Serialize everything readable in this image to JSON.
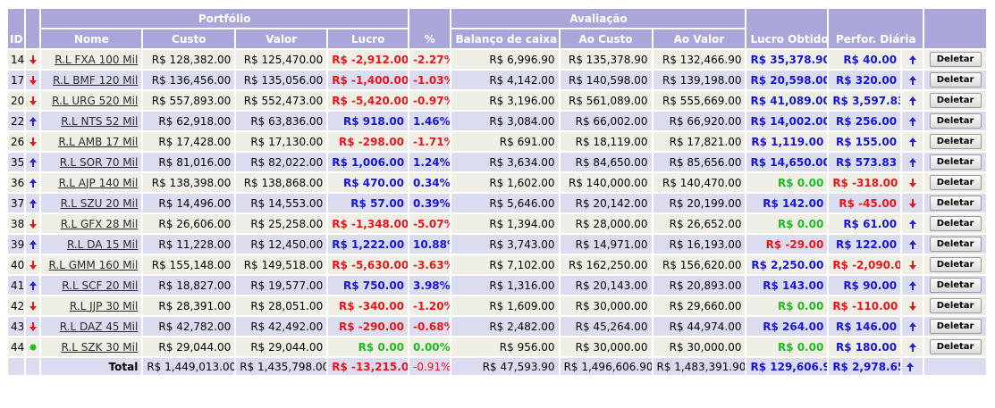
{
  "headers": {
    "id": "ID",
    "portfolio": "Portfólio",
    "nome": "Nome",
    "custo": "Custo",
    "valor": "Valor",
    "lucro": "Lucro",
    "pct": "%",
    "avaliacao": "Avaliação",
    "balanco": "Balanço de caixa",
    "ao_custo": "Ao Custo",
    "ao_valor": "Ao Valor",
    "lucro_obtido": "Lucro Obtido",
    "perfor_diaria": "Perfor. Diária"
  },
  "delete_label": "Deletar",
  "colors": {
    "positive": "#1515d8",
    "negative": "#e8161a",
    "zero": "#21bb21",
    "header": "#a9a7d9"
  },
  "rows": [
    {
      "id": "14",
      "trend": "down",
      "name": "R.L FXA 100 Mil",
      "custo": "R$ 128,382.00",
      "valor": "R$ 125,470.00",
      "lucro": "R$ -2,912.00",
      "lucro_s": "neg",
      "pct": "-2.27%",
      "pct_s": "neg",
      "balanco": "R$ 6,996.90",
      "ao_custo": "R$ 135,378.90",
      "ao_valor": "R$ 132,466.90",
      "lucro_obtido": "R$ 35,378.90",
      "lo_s": "pos",
      "perf": "R$ 40.00",
      "perf_s": "pos",
      "perf_trend": "up"
    },
    {
      "id": "17",
      "trend": "down",
      "name": "R.L BMF 120 Mil",
      "custo": "R$ 136,456.00",
      "valor": "R$ 135,056.00",
      "lucro": "R$ -1,400.00",
      "lucro_s": "neg",
      "pct": "-1.03%",
      "pct_s": "neg",
      "balanco": "R$ 4,142.00",
      "ao_custo": "R$ 140,598.00",
      "ao_valor": "R$ 139,198.00",
      "lucro_obtido": "R$ 20,598.00",
      "lo_s": "pos",
      "perf": "R$ 320.00",
      "perf_s": "pos",
      "perf_trend": "up"
    },
    {
      "id": "20",
      "trend": "down",
      "name": "R.L URG 520 Mil",
      "custo": "R$ 557,893.00",
      "valor": "R$ 552,473.00",
      "lucro": "R$ -5,420.00",
      "lucro_s": "neg",
      "pct": "-0.97%",
      "pct_s": "neg",
      "balanco": "R$ 3,196.00",
      "ao_custo": "R$ 561,089.00",
      "ao_valor": "R$ 555,669.00",
      "lucro_obtido": "R$ 41,089.00",
      "lo_s": "pos",
      "perf": "R$ 3,597.83",
      "perf_s": "pos",
      "perf_trend": "up"
    },
    {
      "id": "22",
      "trend": "up",
      "name": "R.L NTS 52 Mil",
      "custo": "R$ 62,918.00",
      "valor": "R$ 63,836.00",
      "lucro": "R$ 918.00",
      "lucro_s": "pos",
      "pct": "1.46%",
      "pct_s": "pos",
      "balanco": "R$ 3,084.00",
      "ao_custo": "R$ 66,002.00",
      "ao_valor": "R$ 66,920.00",
      "lucro_obtido": "R$ 14,002.00",
      "lo_s": "pos",
      "perf": "R$ 256.00",
      "perf_s": "pos",
      "perf_trend": "up"
    },
    {
      "id": "26",
      "trend": "down",
      "name": "R.L AMB 17 Mil",
      "custo": "R$ 17,428.00",
      "valor": "R$ 17,130.00",
      "lucro": "R$ -298.00",
      "lucro_s": "neg",
      "pct": "-1.71%",
      "pct_s": "neg",
      "balanco": "R$ 691.00",
      "ao_custo": "R$ 18,119.00",
      "ao_valor": "R$ 17,821.00",
      "lucro_obtido": "R$ 1,119.00",
      "lo_s": "pos",
      "perf": "R$ 155.00",
      "perf_s": "pos",
      "perf_trend": "up"
    },
    {
      "id": "35",
      "trend": "up",
      "name": "R.L SOR 70 Mil",
      "custo": "R$ 81,016.00",
      "valor": "R$ 82,022.00",
      "lucro": "R$ 1,006.00",
      "lucro_s": "pos",
      "pct": "1.24%",
      "pct_s": "pos",
      "balanco": "R$ 3,634.00",
      "ao_custo": "R$ 84,650.00",
      "ao_valor": "R$ 85,656.00",
      "lucro_obtido": "R$ 14,650.00",
      "lo_s": "pos",
      "perf": "R$ 573.83",
      "perf_s": "pos",
      "perf_trend": "up"
    },
    {
      "id": "36",
      "trend": "up",
      "name": "R.L AJP 140 Mil",
      "custo": "R$ 138,398.00",
      "valor": "R$ 138,868.00",
      "lucro": "R$ 470.00",
      "lucro_s": "pos",
      "pct": "0.34%",
      "pct_s": "pos",
      "balanco": "R$ 1,602.00",
      "ao_custo": "R$ 140,000.00",
      "ao_valor": "R$ 140,470.00",
      "lucro_obtido": "R$ 0.00",
      "lo_s": "zero",
      "perf": "R$ -318.00",
      "perf_s": "neg",
      "perf_trend": "down"
    },
    {
      "id": "37",
      "trend": "up",
      "name": "R.L SZU 20 Mil",
      "custo": "R$ 14,496.00",
      "valor": "R$ 14,553.00",
      "lucro": "R$ 57.00",
      "lucro_s": "pos",
      "pct": "0.39%",
      "pct_s": "pos",
      "balanco": "R$ 5,646.00",
      "ao_custo": "R$ 20,142.00",
      "ao_valor": "R$ 20,199.00",
      "lucro_obtido": "R$ 142.00",
      "lo_s": "pos",
      "perf": "R$ -45.00",
      "perf_s": "neg",
      "perf_trend": "down"
    },
    {
      "id": "38",
      "trend": "down",
      "name": "R.L GFX 28 Mil",
      "custo": "R$ 26,606.00",
      "valor": "R$ 25,258.00",
      "lucro": "R$ -1,348.00",
      "lucro_s": "neg",
      "pct": "-5.07%",
      "pct_s": "neg",
      "balanco": "R$ 1,394.00",
      "ao_custo": "R$ 28,000.00",
      "ao_valor": "R$ 26,652.00",
      "lucro_obtido": "R$ 0.00",
      "lo_s": "zero",
      "perf": "R$ 61.00",
      "perf_s": "pos",
      "perf_trend": "up"
    },
    {
      "id": "39",
      "trend": "up",
      "name": "R.L DA 15 Mil",
      "custo": "R$ 11,228.00",
      "valor": "R$ 12,450.00",
      "lucro": "R$ 1,222.00",
      "lucro_s": "pos",
      "pct": "10.88%",
      "pct_s": "pos",
      "balanco": "R$ 3,743.00",
      "ao_custo": "R$ 14,971.00",
      "ao_valor": "R$ 16,193.00",
      "lucro_obtido": "R$ -29.00",
      "lo_s": "neg",
      "perf": "R$ 122.00",
      "perf_s": "pos",
      "perf_trend": "up"
    },
    {
      "id": "40",
      "trend": "down",
      "name": "R.L GMM 160 Mil",
      "custo": "R$ 155,148.00",
      "valor": "R$ 149,518.00",
      "lucro": "R$ -5,630.00",
      "lucro_s": "neg",
      "pct": "-3.63%",
      "pct_s": "neg",
      "balanco": "R$ 7,102.00",
      "ao_custo": "R$ 162,250.00",
      "ao_valor": "R$ 156,620.00",
      "lucro_obtido": "R$ 2,250.00",
      "lo_s": "pos",
      "perf": "R$ -2,090.00",
      "perf_s": "neg",
      "perf_trend": "down"
    },
    {
      "id": "41",
      "trend": "up",
      "name": "R.L SCF 20 Mil",
      "custo": "R$ 18,827.00",
      "valor": "R$ 19,577.00",
      "lucro": "R$ 750.00",
      "lucro_s": "pos",
      "pct": "3.98%",
      "pct_s": "pos",
      "balanco": "R$ 1,316.00",
      "ao_custo": "R$ 20,143.00",
      "ao_valor": "R$ 20,893.00",
      "lucro_obtido": "R$ 143.00",
      "lo_s": "pos",
      "perf": "R$ 90.00",
      "perf_s": "pos",
      "perf_trend": "up"
    },
    {
      "id": "42",
      "trend": "down",
      "name": "R.L JJP 30 Mil",
      "custo": "R$ 28,391.00",
      "valor": "R$ 28,051.00",
      "lucro": "R$ -340.00",
      "lucro_s": "neg",
      "pct": "-1.20%",
      "pct_s": "neg",
      "balanco": "R$ 1,609.00",
      "ao_custo": "R$ 30,000.00",
      "ao_valor": "R$ 29,660.00",
      "lucro_obtido": "R$ 0.00",
      "lo_s": "zero",
      "perf": "R$ -110.00",
      "perf_s": "neg",
      "perf_trend": "down"
    },
    {
      "id": "43",
      "trend": "down",
      "name": "R.L DAZ 45 Mil",
      "custo": "R$ 42,782.00",
      "valor": "R$ 42,492.00",
      "lucro": "R$ -290.00",
      "lucro_s": "neg",
      "pct": "-0.68%",
      "pct_s": "neg",
      "balanco": "R$ 2,482.00",
      "ao_custo": "R$ 45,264.00",
      "ao_valor": "R$ 44,974.00",
      "lucro_obtido": "R$ 264.00",
      "lo_s": "pos",
      "perf": "R$ 146.00",
      "perf_s": "pos",
      "perf_trend": "up"
    },
    {
      "id": "44",
      "trend": "flat",
      "name": "R.L SZK 30 Mil",
      "custo": "R$ 29,044.00",
      "valor": "R$ 29,044.00",
      "lucro": "R$ 0.00",
      "lucro_s": "zero",
      "pct": "0.00%",
      "pct_s": "zero",
      "balanco": "R$ 956.00",
      "ao_custo": "R$ 30,000.00",
      "ao_valor": "R$ 30,000.00",
      "lucro_obtido": "R$ 0.00",
      "lo_s": "zero",
      "perf": "R$ 180.00",
      "perf_s": "pos",
      "perf_trend": "up"
    }
  ],
  "total": {
    "label": "Total",
    "custo": "R$ 1,449,013.00",
    "valor": "R$ 1,435,798.00",
    "lucro": "R$ -13,215.00",
    "pct": "-0.91%",
    "balanco": "R$ 47,593.90",
    "ao_custo": "R$ 1,496,606.90",
    "ao_valor": "R$ 1,483,391.90",
    "lucro_obtido": "R$ 129,606.90",
    "perf": "R$ 2,978.65"
  }
}
